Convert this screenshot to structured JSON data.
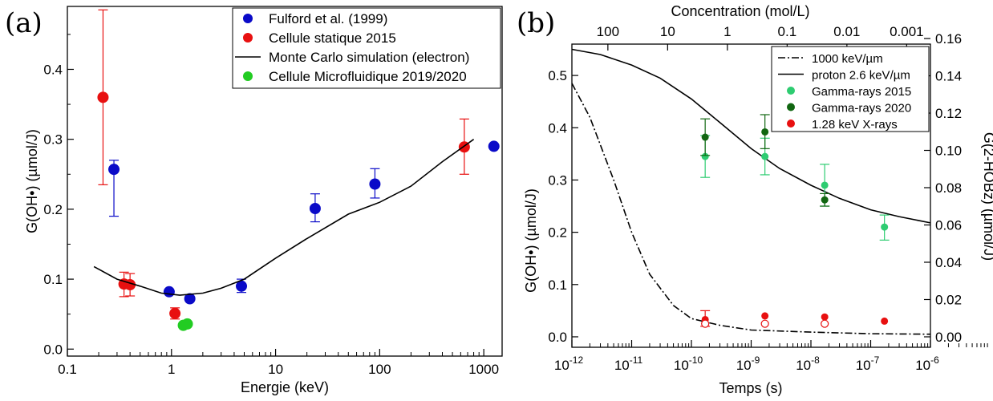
{
  "chart_data": [
    {
      "panel_label": "(a)",
      "type": "scatter",
      "xlabel": "Energie (keV)",
      "ylabel": "G(OH•) (µmol/J)",
      "x_scale": "log",
      "xlim": [
        0.1,
        1500
      ],
      "ylim": [
        -0.01,
        0.49
      ],
      "x_ticks": [
        {
          "value": 0.1,
          "label": "0.1"
        },
        {
          "value": 1,
          "label": "1"
        },
        {
          "value": 10,
          "label": "10"
        },
        {
          "value": 100,
          "label": "100"
        },
        {
          "value": 1000,
          "label": "1000"
        }
      ],
      "y_ticks": [
        {
          "value": 0,
          "label": "0.0"
        },
        {
          "value": 0.1,
          "label": "0.1"
        },
        {
          "value": 0.2,
          "label": "0.2"
        },
        {
          "value": 0.3,
          "label": "0.3"
        },
        {
          "value": 0.4,
          "label": "0.4"
        }
      ],
      "legend_position": "top-right",
      "series": [
        {
          "name": "Fulford et al. (1999)",
          "kind": "marker",
          "color": "#0a0ac8",
          "points": [
            {
              "x": 0.28,
              "y": 0.257,
              "err_low": 0.19,
              "err_high": 0.27
            },
            {
              "x": 0.95,
              "y": 0.082
            },
            {
              "x": 1.5,
              "y": 0.072
            },
            {
              "x": 4.7,
              "y": 0.09,
              "err_low": 0.081,
              "err_high": 0.1
            },
            {
              "x": 24,
              "y": 0.201,
              "err_low": 0.182,
              "err_high": 0.222
            },
            {
              "x": 90,
              "y": 0.236,
              "err_low": 0.216,
              "err_high": 0.258
            },
            {
              "x": 1250,
              "y": 0.29
            }
          ]
        },
        {
          "name": "Cellule statique 2015",
          "kind": "marker",
          "color": "#e81010",
          "points": [
            {
              "x": 0.22,
              "y": 0.36,
              "err_low": 0.235,
              "err_high": 0.485
            },
            {
              "x": 0.35,
              "y": 0.093,
              "err_low": 0.075,
              "err_high": 0.11
            },
            {
              "x": 0.4,
              "y": 0.092,
              "err_low": 0.076,
              "err_high": 0.108
            },
            {
              "x": 1.08,
              "y": 0.051,
              "err_low": 0.043,
              "err_high": 0.059
            },
            {
              "x": 650,
              "y": 0.289,
              "err_low": 0.25,
              "err_high": 0.329
            }
          ]
        },
        {
          "name": "Monte Carlo simulation (electron)",
          "kind": "line",
          "color": "#000000",
          "points": [
            {
              "x": 0.18,
              "y": 0.118
            },
            {
              "x": 0.3,
              "y": 0.1
            },
            {
              "x": 0.5,
              "y": 0.09
            },
            {
              "x": 0.8,
              "y": 0.08
            },
            {
              "x": 1.2,
              "y": 0.077
            },
            {
              "x": 2,
              "y": 0.08
            },
            {
              "x": 3,
              "y": 0.087
            },
            {
              "x": 5,
              "y": 0.1
            },
            {
              "x": 10,
              "y": 0.13
            },
            {
              "x": 20,
              "y": 0.158
            },
            {
              "x": 50,
              "y": 0.193
            },
            {
              "x": 100,
              "y": 0.21
            },
            {
              "x": 200,
              "y": 0.233
            },
            {
              "x": 400,
              "y": 0.268
            },
            {
              "x": 800,
              "y": 0.3
            }
          ]
        },
        {
          "name": "Cellule Microfluidique 2019/2020",
          "kind": "marker",
          "color": "#22cc22",
          "points": [
            {
              "x": 1.3,
              "y": 0.034
            },
            {
              "x": 1.42,
              "y": 0.036
            }
          ]
        }
      ]
    },
    {
      "panel_label": "(b)",
      "type": "scatter",
      "xlabel": "Temps (s)",
      "ylabel": "G(OH•) (µmol/J)",
      "y2label": "G(2-HOBz) (µmol/J)",
      "top_label": "Concentration (mol/L)",
      "x_scale": "log",
      "xlim": [
        1e-12,
        1e-06
      ],
      "ylim": [
        -0.02,
        0.56
      ],
      "y2lim": [
        -0.0056,
        0.157
      ],
      "x_ticks": [
        {
          "value": 1e-12,
          "base": "10",
          "exp": "-12"
        },
        {
          "value": 1e-11,
          "base": "10",
          "exp": "-11"
        },
        {
          "value": 1e-10,
          "base": "10",
          "exp": "-10"
        },
        {
          "value": 1e-09,
          "base": "10",
          "exp": "-9"
        },
        {
          "value": 1e-08,
          "base": "10",
          "exp": "-8"
        },
        {
          "value": 1e-07,
          "base": "10",
          "exp": "-7"
        },
        {
          "value": 1e-06,
          "base": "10",
          "exp": "-6"
        }
      ],
      "y_ticks": [
        {
          "value": 0,
          "label": "0.0"
        },
        {
          "value": 0.1,
          "label": "0.1"
        },
        {
          "value": 0.2,
          "label": "0.2"
        },
        {
          "value": 0.3,
          "label": "0.3"
        },
        {
          "value": 0.4,
          "label": "0.4"
        },
        {
          "value": 0.5,
          "label": "0.5"
        }
      ],
      "y2_ticks": [
        {
          "value": 0.0,
          "label": "0.00"
        },
        {
          "value": 0.02,
          "label": "0.02"
        },
        {
          "value": 0.04,
          "label": "0.04"
        },
        {
          "value": 0.06,
          "label": "0.06"
        },
        {
          "value": 0.08,
          "label": "0.08"
        },
        {
          "value": 0.1,
          "label": "0.10"
        },
        {
          "value": 0.12,
          "label": "0.12"
        },
        {
          "value": 0.14,
          "label": "0.14"
        },
        {
          "value": 0.16,
          "label": "0.16"
        }
      ],
      "top_ticks": [
        {
          "time": 4e-12,
          "label": "100"
        },
        {
          "time": 4e-11,
          "label": "10"
        },
        {
          "time": 4e-10,
          "label": "1"
        },
        {
          "time": 4e-09,
          "label": "0.1"
        },
        {
          "time": 4e-08,
          "label": "0.01"
        },
        {
          "time": 4e-07,
          "label": "0.001"
        }
      ],
      "legend_position": "top-right",
      "series": [
        {
          "name": "1000 keV/µm",
          "kind": "line",
          "dash": "dashdot",
          "color": "#000000",
          "points": [
            {
              "x": 1e-12,
              "y": 0.485
            },
            {
              "x": 2e-12,
              "y": 0.42
            },
            {
              "x": 5e-12,
              "y": 0.3
            },
            {
              "x": 1e-11,
              "y": 0.2
            },
            {
              "x": 2e-11,
              "y": 0.12
            },
            {
              "x": 5e-11,
              "y": 0.06
            },
            {
              "x": 1e-10,
              "y": 0.035
            },
            {
              "x": 3e-10,
              "y": 0.022
            },
            {
              "x": 1e-09,
              "y": 0.013
            },
            {
              "x": 1e-08,
              "y": 0.009
            },
            {
              "x": 1e-07,
              "y": 0.006
            },
            {
              "x": 1e-06,
              "y": 0.005
            }
          ]
        },
        {
          "name": "proton 2.6 keV/µm",
          "kind": "line",
          "dash": "solid",
          "color": "#000000",
          "points": [
            {
              "x": 1e-12,
              "y": 0.55
            },
            {
              "x": 3e-12,
              "y": 0.54
            },
            {
              "x": 1e-11,
              "y": 0.52
            },
            {
              "x": 3e-11,
              "y": 0.495
            },
            {
              "x": 1e-10,
              "y": 0.455
            },
            {
              "x": 3e-10,
              "y": 0.41
            },
            {
              "x": 1e-09,
              "y": 0.36
            },
            {
              "x": 3e-09,
              "y": 0.322
            },
            {
              "x": 1e-08,
              "y": 0.29
            },
            {
              "x": 3e-08,
              "y": 0.265
            },
            {
              "x": 1e-07,
              "y": 0.243
            },
            {
              "x": 3e-07,
              "y": 0.23
            },
            {
              "x": 1e-06,
              "y": 0.218
            }
          ]
        },
        {
          "name": "Gamma-rays 2015",
          "kind": "marker",
          "color": "#2ecc71",
          "points": [
            {
              "x": 1.7e-10,
              "y": 0.345,
              "err_low": 0.305,
              "err_high": 0.385
            },
            {
              "x": 1.7e-09,
              "y": 0.345,
              "err_low": 0.31,
              "err_high": 0.38
            },
            {
              "x": 1.7e-08,
              "y": 0.29,
              "err_low": 0.25,
              "err_high": 0.33
            },
            {
              "x": 1.7e-07,
              "y": 0.21,
              "err_low": 0.185,
              "err_high": 0.233
            }
          ]
        },
        {
          "name": "Gamma-rays 2020",
          "kind": "marker",
          "color": "#116611",
          "points": [
            {
              "x": 1.7e-10,
              "y": 0.382,
              "err_low": 0.347,
              "err_high": 0.417
            },
            {
              "x": 1.7e-09,
              "y": 0.392,
              "err_low": 0.36,
              "err_high": 0.425
            },
            {
              "x": 1.7e-08,
              "y": 0.262,
              "err_low": 0.25,
              "err_high": 0.274
            }
          ]
        },
        {
          "name": "1.28 keV X-rays",
          "kind": "marker",
          "color": "#e81010",
          "points": [
            {
              "x": 1.7e-10,
              "y": 0.033,
              "err_low": 0.02,
              "err_high": 0.05
            },
            {
              "x": 1.7e-09,
              "y": 0.04
            },
            {
              "x": 1.7e-08,
              "y": 0.038
            },
            {
              "x": 1.7e-07,
              "y": 0.03
            }
          ]
        },
        {
          "kind": "marker",
          "hollow": true,
          "color": "#e81010",
          "points": [
            {
              "x": 1.7e-10,
              "y": 0.025
            },
            {
              "x": 1.7e-09,
              "y": 0.025
            },
            {
              "x": 1.7e-08,
              "y": 0.025
            }
          ]
        }
      ]
    }
  ]
}
